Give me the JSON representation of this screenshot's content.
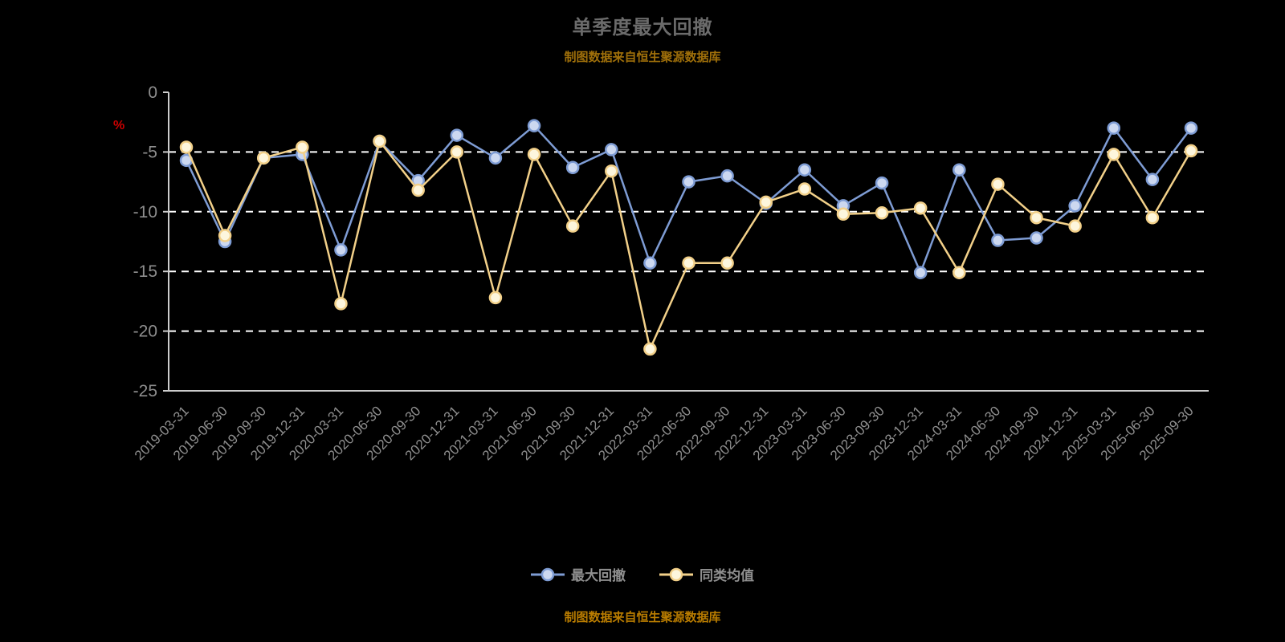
{
  "page": {
    "title": "单季度最大回撤",
    "source_note_top": "制图数据来自恒生聚源数据库",
    "source_note_bottom": "制图数据来自恒生聚源数据库",
    "percent_label": "%"
  },
  "chart_data": {
    "type": "line",
    "title": "单季度最大回撤",
    "ylabel": "%",
    "ylim": [
      0,
      -25
    ],
    "yticks": [
      0,
      -5,
      -10,
      -15,
      -20,
      -25
    ],
    "grid": true,
    "legend_position": "bottom",
    "categories": [
      "2019-03-31",
      "2019-06-30",
      "2019-09-30",
      "2019-12-31",
      "2020-03-31",
      "2020-06-30",
      "2020-09-30",
      "2020-12-31",
      "2021-03-31",
      "2021-06-30",
      "2021-09-30",
      "2021-12-31",
      "2022-03-31",
      "2022-06-30",
      "2022-09-30",
      "2022-12-31",
      "2023-03-31",
      "2023-06-30",
      "2023-09-30",
      "2023-12-31",
      "2024-03-31",
      "2024-06-30",
      "2024-09-30",
      "2024-12-31",
      "2025-03-31",
      "2025-06-30",
      "2025-09-30"
    ],
    "series": [
      {
        "name": "最大回撤",
        "color": "#7e9cd4",
        "marker_fill": "#ccd8f0",
        "values": [
          -5.7,
          -12.5,
          -5.5,
          -5.2,
          -13.2,
          -4.1,
          -7.4,
          -3.6,
          -5.5,
          -2.8,
          -6.3,
          -4.8,
          -14.3,
          -7.5,
          -7.0,
          -9.3,
          -6.5,
          -9.5,
          -7.6,
          -15.1,
          -6.5,
          -12.4,
          -12.2,
          -9.5,
          -3.0,
          -7.3,
          -3.0
        ]
      },
      {
        "name": "同类均值",
        "color": "#f2d089",
        "marker_fill": "#fdf6dd",
        "values": [
          -4.6,
          -12.0,
          -5.5,
          -4.6,
          -17.7,
          -4.1,
          -8.2,
          -5.0,
          -17.2,
          -5.2,
          -11.2,
          -6.6,
          -21.5,
          -14.3,
          -14.3,
          -9.2,
          -8.1,
          -10.2,
          -10.1,
          -9.7,
          -15.1,
          -7.7,
          -10.5,
          -11.2,
          -5.2,
          -10.5,
          -4.9
        ]
      }
    ]
  }
}
